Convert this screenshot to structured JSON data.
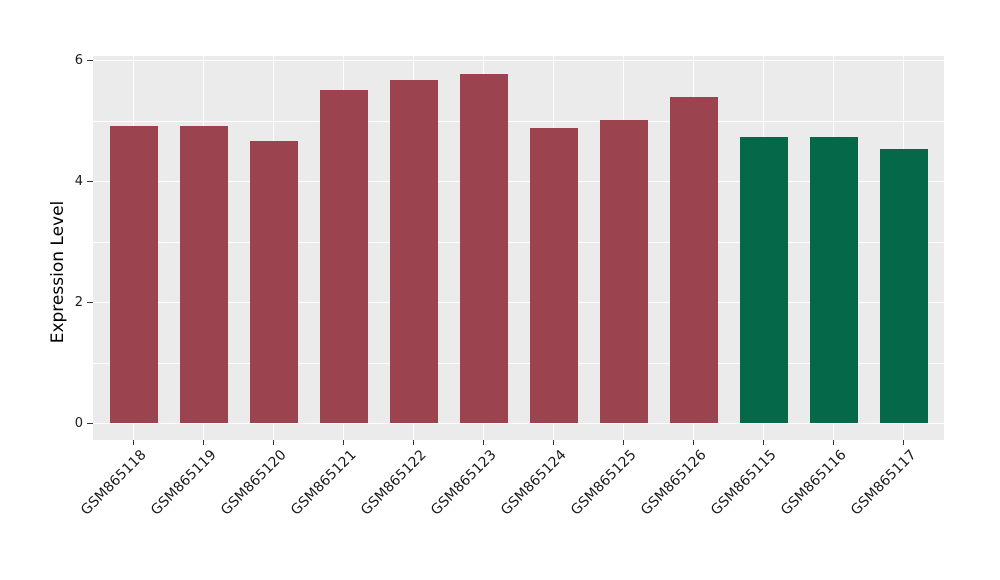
{
  "figure": {
    "background": "#FFFFFF",
    "panel_background": "#EBEBEB",
    "gridline_color": "#FFFFFF",
    "tick_mark_color": "#333333",
    "text_color": "#1A1A1A"
  },
  "chart_data": {
    "type": "bar",
    "title": "",
    "xlabel": "",
    "ylabel": "Expression Level",
    "categories": [
      "GSM865118",
      "GSM865119",
      "GSM865120",
      "GSM865121",
      "GSM865122",
      "GSM865123",
      "GSM865124",
      "GSM865125",
      "GSM865126",
      "GSM865115",
      "GSM865116",
      "GSM865117"
    ],
    "values": [
      4.92,
      4.92,
      4.67,
      5.52,
      5.68,
      5.77,
      4.88,
      5.02,
      5.39,
      4.74,
      4.73,
      4.53
    ],
    "bar_colors": [
      "#9C4350",
      "#9C4350",
      "#9C4350",
      "#9C4350",
      "#9C4350",
      "#9C4350",
      "#9C4350",
      "#9C4350",
      "#9C4350",
      "#056949",
      "#056949",
      "#056949"
    ],
    "group_colors": {
      "maroon": "#9C4350",
      "green": "#056949"
    },
    "y_ticks": [
      0,
      2,
      4,
      6
    ],
    "y_minor_gridlines": [
      1,
      3,
      5
    ],
    "ylim": [
      -0.28,
      6.06
    ],
    "grid": true,
    "legend": false,
    "bar_orientation": "vertical",
    "x_label_rotation_deg": 45
  }
}
